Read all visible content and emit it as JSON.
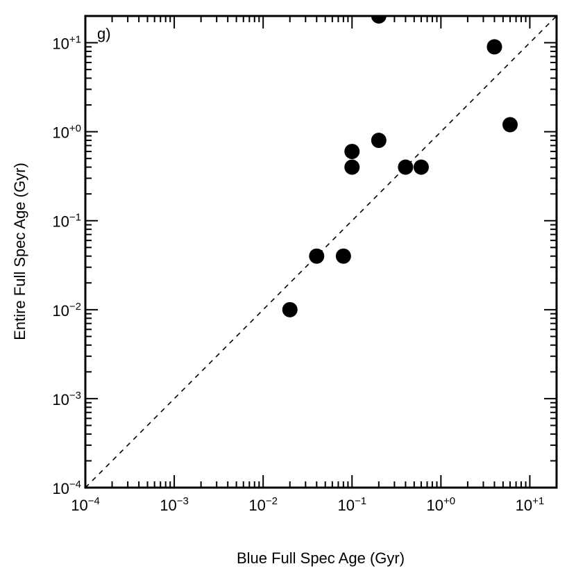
{
  "chart_data": {
    "type": "scatter",
    "panel_label": "g)",
    "xlabel": "Blue Full Spec Age (Gyr)",
    "ylabel": "Entire Full Spec Age (Gyr)",
    "x_scale": "log",
    "y_scale": "log",
    "xlim": [
      0.0001,
      20
    ],
    "ylim": [
      0.0001,
      20
    ],
    "x_ticks": [
      {
        "value": 0.0001,
        "base": "10",
        "exp": "−4"
      },
      {
        "value": 0.001,
        "base": "10",
        "exp": "−3"
      },
      {
        "value": 0.01,
        "base": "10",
        "exp": "−2"
      },
      {
        "value": 0.1,
        "base": "10",
        "exp": "−1"
      },
      {
        "value": 1,
        "base": "10",
        "exp": "+0"
      },
      {
        "value": 10,
        "base": "10",
        "exp": "+1"
      }
    ],
    "y_ticks": [
      {
        "value": 0.0001,
        "base": "10",
        "exp": "−4"
      },
      {
        "value": 0.001,
        "base": "10",
        "exp": "−3"
      },
      {
        "value": 0.01,
        "base": "10",
        "exp": "−2"
      },
      {
        "value": 0.1,
        "base": "10",
        "exp": "−1"
      },
      {
        "value": 1,
        "base": "10",
        "exp": "+0"
      },
      {
        "value": 10,
        "base": "10",
        "exp": "+1"
      }
    ],
    "reference_line": {
      "style": "dashed",
      "relation": "y = x"
    },
    "points": [
      {
        "x": 0.02,
        "y": 0.01
      },
      {
        "x": 0.04,
        "y": 0.04
      },
      {
        "x": 0.08,
        "y": 0.04
      },
      {
        "x": 0.1,
        "y": 0.4
      },
      {
        "x": 0.1,
        "y": 0.6
      },
      {
        "x": 0.2,
        "y": 0.8
      },
      {
        "x": 0.2,
        "y": 20
      },
      {
        "x": 0.4,
        "y": 0.4
      },
      {
        "x": 0.6,
        "y": 0.4
      },
      {
        "x": 4,
        "y": 9
      },
      {
        "x": 6,
        "y": 1.2
      }
    ],
    "marker_color": "#000000",
    "grid": false
  }
}
